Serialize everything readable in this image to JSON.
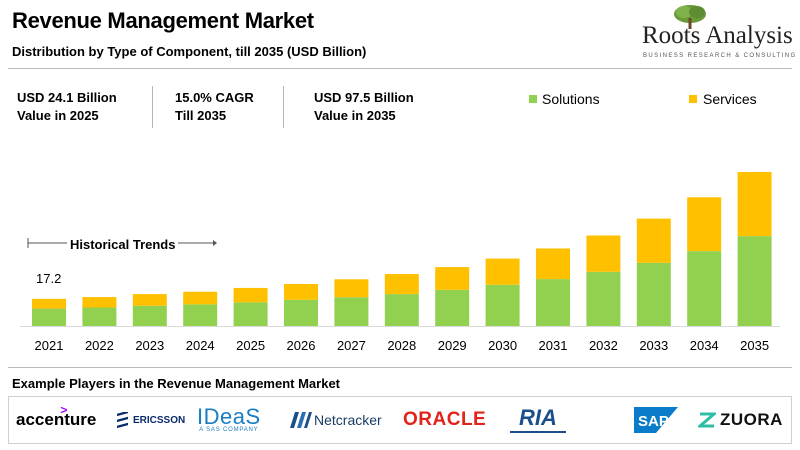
{
  "header": {
    "title": "Revenue Management Market",
    "subtitle": "Distribution by Type of Component, till 2035 (USD Billion)"
  },
  "brand": {
    "name": "Roots Analysis",
    "tagline": "BUSINESS RESEARCH & CONSULTING",
    "icon": "tree-icon"
  },
  "stats": [
    {
      "line1": "USD 24.1 Billion",
      "line2": "Value in 2025"
    },
    {
      "line1": "15.0% CAGR",
      "line2": "Till 2035"
    },
    {
      "line1": "USD 97.5 Billion",
      "line2": "Value in 2035"
    }
  ],
  "annotation": {
    "historical_label": "Historical Trends",
    "first_value_label": "17.2"
  },
  "colors": {
    "solutions": "#92d050",
    "services": "#ffc000"
  },
  "chart_data": {
    "type": "bar",
    "stacked": true,
    "categories": [
      "2021",
      "2022",
      "2023",
      "2024",
      "2025",
      "2026",
      "2027",
      "2028",
      "2029",
      "2030",
      "2031",
      "2032",
      "2033",
      "2034",
      "2035"
    ],
    "series": [
      {
        "name": "Solutions",
        "values": [
          11.0,
          11.7,
          12.8,
          13.7,
          15.0,
          16.6,
          18.2,
          20.2,
          22.9,
          26.1,
          29.7,
          34.3,
          40.0,
          47.4,
          56.9
        ]
      },
      {
        "name": "Services",
        "values": [
          6.2,
          6.6,
          7.4,
          8.0,
          9.1,
          10.0,
          11.4,
          12.7,
          14.4,
          16.6,
          19.4,
          23.0,
          28.0,
          34.1,
          40.6
        ]
      }
    ],
    "legend_position": "top-right",
    "grid": false,
    "ylim": [
      0,
      100
    ]
  },
  "players": {
    "title": "Example Players in the Revenue Management Market",
    "logos": [
      "accenture",
      "ERICSSON",
      "IDeaS",
      "A SAS COMPANY",
      "Netcracker",
      "ORACLE",
      "RIA",
      "SAP",
      "ZUORA"
    ]
  }
}
